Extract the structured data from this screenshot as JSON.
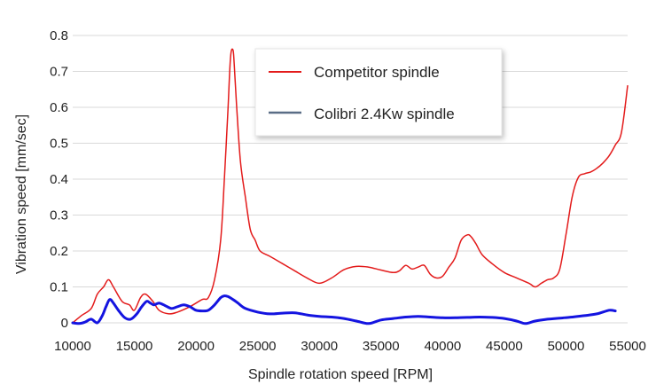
{
  "chart_data": {
    "type": "line",
    "title": "",
    "xlabel": "Spindle rotation speed [RPM]",
    "ylabel": "Vibration speed [mm/sec]",
    "xlim": [
      10000,
      55000
    ],
    "ylim": [
      0,
      0.8
    ],
    "x_ticks": [
      10000,
      15000,
      20000,
      25000,
      30000,
      35000,
      40000,
      45000,
      50000,
      55000
    ],
    "y_ticks": [
      0,
      0.1,
      0.2,
      0.3,
      0.4,
      0.5,
      0.6,
      0.7,
      0.8
    ],
    "x_tick_labels": [
      "10000",
      "15000",
      "20000",
      "25000",
      "30000",
      "35000",
      "40000",
      "45000",
      "50000",
      "55000"
    ],
    "y_tick_labels": [
      "0",
      "0.1",
      "0.2",
      "0.3",
      "0.4",
      "0.5",
      "0.6",
      "0.7",
      "0.8"
    ],
    "grid": "horizontal",
    "legend_position": "top-right",
    "series": [
      {
        "name": "Competitor spindle",
        "color": "#e31b1b",
        "x": [
          10000,
          10700,
          11500,
          12000,
          12500,
          12900,
          13300,
          14000,
          14600,
          15000,
          15500,
          15900,
          16500,
          17000,
          17800,
          18500,
          19500,
          20500,
          21000,
          21500,
          22000,
          22300,
          22600,
          22800,
          23000,
          23100,
          23300,
          23600,
          24000,
          24400,
          24800,
          25200,
          26000,
          27000,
          28000,
          29000,
          30000,
          31000,
          32000,
          33000,
          34000,
          35000,
          36000,
          36500,
          37000,
          37500,
          38000,
          38500,
          39000,
          39500,
          40000,
          40500,
          41000,
          41500,
          42000,
          42300,
          42700,
          43200,
          44000,
          45000,
          46000,
          47000,
          47500,
          48000,
          48500,
          49000,
          49500,
          50000,
          50500,
          51000,
          51500,
          52000,
          52500,
          53000,
          53500,
          54000,
          54500,
          55000
        ],
        "values": [
          0.0,
          0.02,
          0.04,
          0.08,
          0.1,
          0.12,
          0.1,
          0.06,
          0.05,
          0.035,
          0.07,
          0.08,
          0.06,
          0.035,
          0.025,
          0.03,
          0.045,
          0.065,
          0.07,
          0.12,
          0.23,
          0.4,
          0.6,
          0.74,
          0.76,
          0.72,
          0.6,
          0.45,
          0.35,
          0.26,
          0.23,
          0.2,
          0.185,
          0.165,
          0.145,
          0.125,
          0.11,
          0.125,
          0.148,
          0.157,
          0.155,
          0.147,
          0.14,
          0.145,
          0.16,
          0.15,
          0.155,
          0.16,
          0.135,
          0.125,
          0.13,
          0.155,
          0.18,
          0.23,
          0.245,
          0.24,
          0.22,
          0.19,
          0.165,
          0.14,
          0.125,
          0.11,
          0.1,
          0.11,
          0.12,
          0.125,
          0.15,
          0.245,
          0.35,
          0.405,
          0.415,
          0.42,
          0.43,
          0.445,
          0.465,
          0.495,
          0.53,
          0.66
        ]
      },
      {
        "name": "Colibri 2.4Kw spindle",
        "color": "#1414e0",
        "x": [
          10000,
          10500,
          11000,
          11500,
          12000,
          12400,
          12700,
          13000,
          13300,
          13700,
          14200,
          14700,
          15200,
          15600,
          16000,
          16300,
          16600,
          17000,
          17500,
          18000,
          18500,
          19000,
          19500,
          20000,
          20500,
          21000,
          21500,
          22000,
          22300,
          22600,
          23000,
          23400,
          24000,
          25000,
          26000,
          27000,
          28000,
          29000,
          30000,
          31000,
          32000,
          33000,
          34000,
          35000,
          36000,
          37000,
          38000,
          39000,
          40000,
          41000,
          42000,
          43000,
          44000,
          45000,
          46000,
          46700,
          47500,
          48500,
          49500,
          50500,
          51500,
          52500,
          53500,
          54000
        ],
        "values": [
          0.0,
          -0.002,
          0.002,
          0.01,
          0.0,
          0.02,
          0.045,
          0.065,
          0.055,
          0.035,
          0.015,
          0.01,
          0.025,
          0.045,
          0.06,
          0.055,
          0.05,
          0.055,
          0.048,
          0.04,
          0.045,
          0.05,
          0.045,
          0.035,
          0.033,
          0.035,
          0.05,
          0.07,
          0.075,
          0.073,
          0.065,
          0.055,
          0.04,
          0.03,
          0.025,
          0.027,
          0.028,
          0.022,
          0.018,
          0.016,
          0.012,
          0.005,
          -0.002,
          0.008,
          0.012,
          0.016,
          0.018,
          0.016,
          0.014,
          0.014,
          0.015,
          0.016,
          0.015,
          0.012,
          0.005,
          -0.002,
          0.005,
          0.01,
          0.013,
          0.016,
          0.02,
          0.025,
          0.035,
          0.033
        ]
      }
    ]
  }
}
